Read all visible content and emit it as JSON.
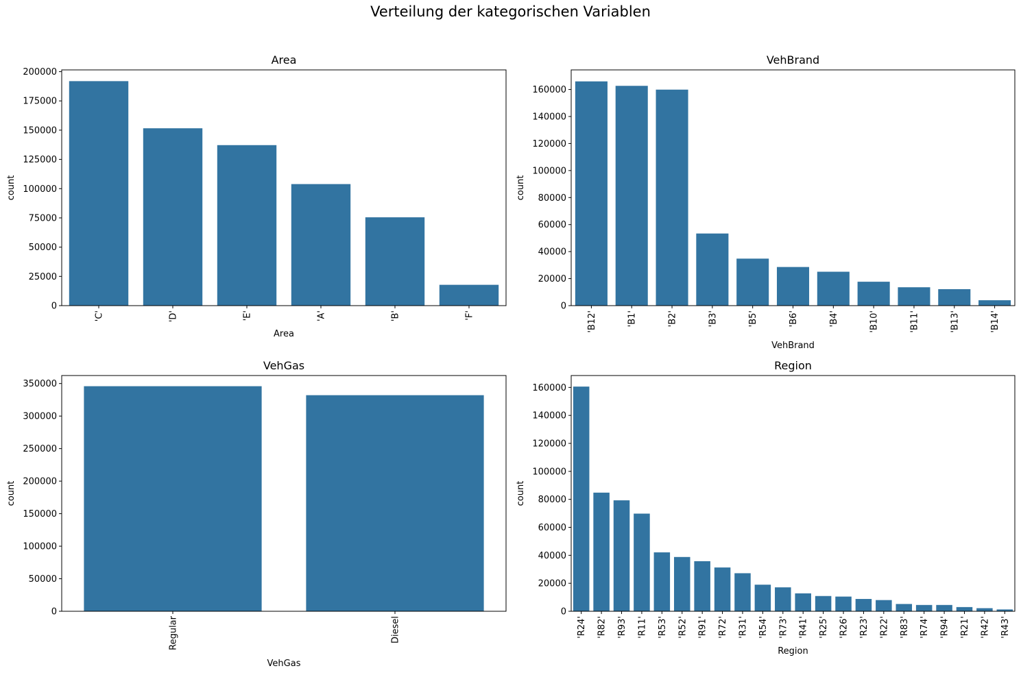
{
  "figure": {
    "title": "Verteilung der kategorischen Variablen",
    "bar_color": "#3274a1"
  },
  "chart_data": [
    {
      "type": "bar",
      "title": "Area",
      "xlabel": "Area",
      "ylabel": "count",
      "ylim": [
        0,
        201500
      ],
      "yticks": [
        0,
        25000,
        50000,
        75000,
        100000,
        125000,
        150000,
        175000,
        200000
      ],
      "categories": [
        "'C'",
        "'D'",
        "'E'",
        "'A'",
        "'B'",
        "'F'"
      ],
      "values": [
        191900,
        151600,
        137200,
        103900,
        75500,
        17800
      ]
    },
    {
      "type": "bar",
      "title": "VehBrand",
      "xlabel": "VehBrand",
      "ylabel": "count",
      "ylim": [
        0,
        174500
      ],
      "yticks": [
        0,
        20000,
        40000,
        60000,
        80000,
        100000,
        120000,
        140000,
        160000
      ],
      "categories": [
        "'B12'",
        "'B1'",
        "'B2'",
        "'B3'",
        "'B5'",
        "'B6'",
        "'B4'",
        "'B10'",
        "'B11'",
        "'B13'",
        "'B14'"
      ],
      "values": [
        166000,
        162700,
        159900,
        53400,
        34800,
        28600,
        25100,
        17700,
        13600,
        12200,
        4000
      ]
    },
    {
      "type": "bar",
      "title": "VehGas",
      "xlabel": "VehGas",
      "ylabel": "count",
      "ylim": [
        0,
        362300
      ],
      "yticks": [
        0,
        50000,
        100000,
        150000,
        200000,
        250000,
        300000,
        350000
      ],
      "categories": [
        "Regular",
        "Diesel"
      ],
      "values": [
        345900,
        332100
      ]
    },
    {
      "type": "bar",
      "title": "Region",
      "xlabel": "Region",
      "ylabel": "count",
      "ylim": [
        0,
        168500
      ],
      "yticks": [
        0,
        20000,
        40000,
        60000,
        80000,
        100000,
        120000,
        140000,
        160000
      ],
      "categories": [
        "'R24'",
        "'R82'",
        "'R93'",
        "'R11'",
        "'R53'",
        "'R52'",
        "'R91'",
        "'R72'",
        "'R31'",
        "'R54'",
        "'R73'",
        "'R41'",
        "'R25'",
        "'R26'",
        "'R23'",
        "'R22'",
        "'R83'",
        "'R74'",
        "'R94'",
        "'R21'",
        "'R42'",
        "'R43'"
      ],
      "values": [
        160600,
        84800,
        79300,
        69800,
        42100,
        38800,
        35800,
        31300,
        27200,
        19000,
        17100,
        12800,
        10900,
        10500,
        8800,
        8000,
        5200,
        4500,
        4500,
        3000,
        2200,
        1300
      ]
    }
  ]
}
